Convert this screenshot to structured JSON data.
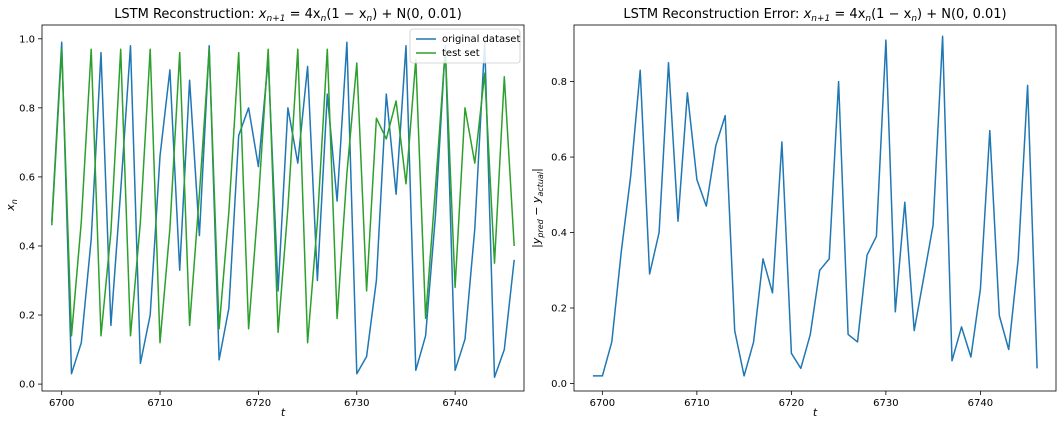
{
  "chart_data": [
    {
      "type": "line",
      "title": "LSTM Reconstruction: x_{n+1} = 4x_n(1 − x_n) + N(0, 0.01)",
      "title_parts": [
        "LSTM Reconstruction: ",
        "x",
        "n+1",
        " = 4x",
        "n",
        "(1 − x",
        "n",
        ") + N(0, 0.01)"
      ],
      "xlabel": "t",
      "ylabel": "x",
      "ylabel_sub": "n",
      "xlim": [
        6698,
        6747
      ],
      "ylim": [
        -0.02,
        1.04
      ],
      "xticks": [
        6700,
        6710,
        6720,
        6730,
        6740
      ],
      "yticks": [
        0.0,
        0.2,
        0.4,
        0.6,
        0.8,
        1.0
      ],
      "xtick_labels": [
        "6700",
        "6710",
        "6720",
        "6730",
        "6740"
      ],
      "ytick_labels": [
        "0.0",
        "0.2",
        "0.4",
        "0.6",
        "0.8",
        "1.0"
      ],
      "legend_position": "top-right",
      "x_start": 6699,
      "series": [
        {
          "name": "original dataset",
          "color": "#1f77b4",
          "values": [
            0.47,
            0.99,
            0.03,
            0.12,
            0.42,
            0.96,
            0.17,
            0.56,
            0.98,
            0.06,
            0.2,
            0.66,
            0.91,
            0.33,
            0.88,
            0.43,
            0.98,
            0.07,
            0.22,
            0.72,
            0.8,
            0.63,
            0.94,
            0.27,
            0.8,
            0.64,
            0.92,
            0.3,
            0.84,
            0.53,
            0.99,
            0.03,
            0.08,
            0.3,
            0.84,
            0.55,
            0.98,
            0.04,
            0.14,
            0.49,
            0.98,
            0.04,
            0.13,
            0.45,
            0.99,
            0.02,
            0.1,
            0.36
          ]
        },
        {
          "name": "test set",
          "color": "#2ca02c",
          "values": [
            0.46,
            0.97,
            0.14,
            0.47,
            0.97,
            0.14,
            0.44,
            0.97,
            0.14,
            0.47,
            0.97,
            0.12,
            0.45,
            0.96,
            0.17,
            0.55,
            0.97,
            0.16,
            0.5,
            0.96,
            0.16,
            0.53,
            0.97,
            0.15,
            0.51,
            0.97,
            0.12,
            0.47,
            0.97,
            0.19,
            0.61,
            0.93,
            0.27,
            0.77,
            0.71,
            0.82,
            0.58,
            0.94,
            0.19,
            0.57,
            0.97,
            0.28,
            0.8,
            0.64,
            0.9,
            0.35,
            0.89,
            0.4
          ]
        }
      ]
    },
    {
      "type": "line",
      "title": "LSTM Reconstruction Error: x_{n+1} = 4x_n(1 − x_n) + N(0, 0.01)",
      "title_parts": [
        "LSTM Reconstruction Error: ",
        "x",
        "n+1",
        " = 4x",
        "n",
        "(1 − x",
        "n",
        ") + N(0, 0.01)"
      ],
      "xlabel": "t",
      "ylabel": "|y_pred − y_actual|",
      "ylabel_parts": [
        "|y",
        "pred",
        " − y",
        "actual",
        "|"
      ],
      "xlim": [
        6697,
        6748
      ],
      "ylim": [
        -0.02,
        0.95
      ],
      "xticks": [
        6700,
        6710,
        6720,
        6730,
        6740
      ],
      "yticks": [
        0.0,
        0.2,
        0.4,
        0.6,
        0.8
      ],
      "xtick_labels": [
        "6700",
        "6710",
        "6720",
        "6730",
        "6740"
      ],
      "ytick_labels": [
        "0.0",
        "0.2",
        "0.4",
        "0.6",
        "0.8"
      ],
      "x_start": 6699,
      "series": [
        {
          "color": "#1f77b4",
          "values": [
            0.02,
            0.02,
            0.11,
            0.35,
            0.55,
            0.83,
            0.29,
            0.4,
            0.85,
            0.43,
            0.77,
            0.54,
            0.47,
            0.63,
            0.71,
            0.14,
            0.02,
            0.11,
            0.33,
            0.24,
            0.64,
            0.08,
            0.04,
            0.13,
            0.3,
            0.33,
            0.8,
            0.13,
            0.11,
            0.34,
            0.39,
            0.91,
            0.19,
            0.48,
            0.14,
            0.28,
            0.42,
            0.92,
            0.06,
            0.15,
            0.07,
            0.25,
            0.67,
            0.18,
            0.09,
            0.33,
            0.79,
            0.04
          ]
        }
      ]
    }
  ]
}
